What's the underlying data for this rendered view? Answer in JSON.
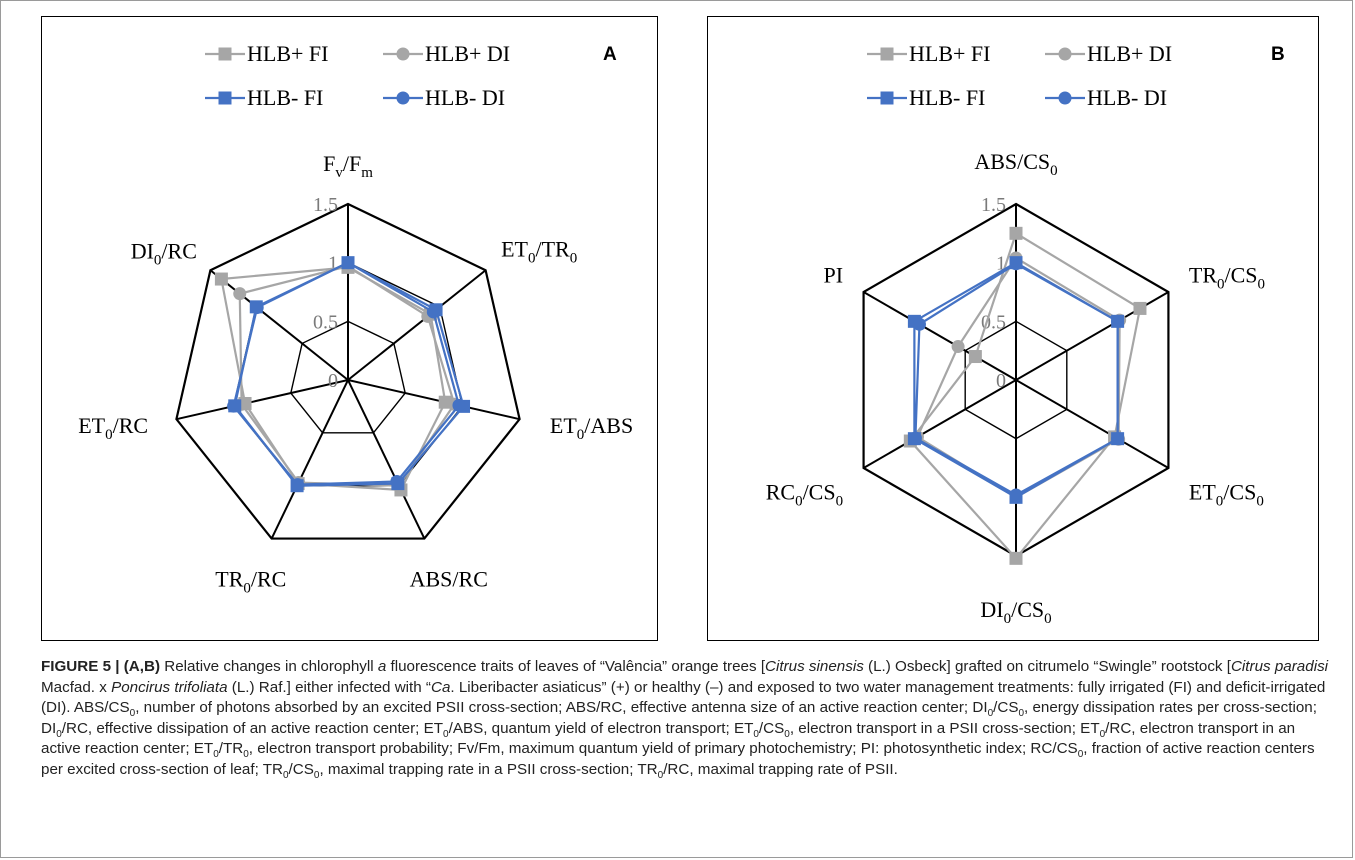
{
  "chart_data": [
    {
      "type": "radar",
      "panel_label": "A",
      "axes": [
        "Fv/Fm",
        "ET0/TR0",
        "ET0/ABS",
        "ABS/RC",
        "TR0/RC",
        "ET0/RC",
        "DI0/RC"
      ],
      "tick_labels": [
        "0",
        "0.5",
        "1",
        "1.5"
      ],
      "range": [
        0,
        1.5
      ],
      "legend": [
        "HLB+ FI",
        "HLB+ DI",
        "HLB- FI",
        "HLB- DI"
      ],
      "series": [
        {
          "name": "HLB+ FI",
          "color": "#a6a6a6",
          "marker": "square",
          "values": [
            0.96,
            0.9,
            0.85,
            1.04,
            0.98,
            0.9,
            1.38
          ]
        },
        {
          "name": "HLB+ DI",
          "color": "#a6a6a6",
          "marker": "circle",
          "values": [
            0.97,
            0.87,
            0.93,
            1.0,
            0.97,
            0.93,
            1.18
          ]
        },
        {
          "name": "HLB- FI",
          "color": "#4472c4",
          "marker": "square",
          "values": [
            1.0,
            0.96,
            1.01,
            0.98,
            1.0,
            0.99,
            1.0
          ]
        },
        {
          "name": "HLB- DI",
          "color": "#4472c4",
          "marker": "circle",
          "values": [
            1.0,
            0.93,
            0.97,
            0.96,
            0.99,
            1.0,
            0.99
          ]
        }
      ]
    },
    {
      "type": "radar",
      "panel_label": "B",
      "axes": [
        "ABS/CS0",
        "TR0/CS0",
        "ET0/CS0",
        "DI0/CS0",
        "RC0/CS0",
        "PI"
      ],
      "tick_labels": [
        "0",
        "0.5",
        "1",
        "1.5"
      ],
      "range": [
        0,
        1.5
      ],
      "legend": [
        "HLB+ FI",
        "HLB+ DI",
        "HLB- FI",
        "HLB- DI"
      ],
      "series": [
        {
          "name": "HLB+ FI",
          "color": "#a6a6a6",
          "marker": "square",
          "values": [
            1.25,
            1.22,
            0.97,
            1.52,
            1.04,
            0.4
          ]
        },
        {
          "name": "HLB+ DI",
          "color": "#a6a6a6",
          "marker": "circle",
          "values": [
            1.04,
            1.02,
            1.01,
            1.0,
            0.97,
            0.57
          ]
        },
        {
          "name": "HLB- FI",
          "color": "#4472c4",
          "marker": "square",
          "values": [
            1.0,
            1.0,
            1.0,
            1.0,
            1.0,
            1.0
          ]
        },
        {
          "name": "HLB- DI",
          "color": "#4472c4",
          "marker": "circle",
          "values": [
            0.99,
            1.0,
            1.0,
            0.98,
            0.99,
            0.95
          ]
        }
      ]
    }
  ],
  "caption": {
    "lead": "FIGURE 5 | (A,B)",
    "text": [
      {
        "t": " Relative changes in chlorophyll "
      },
      {
        "t": "a",
        "i": true
      },
      {
        "t": " fluorescence traits of leaves of “Valência” orange trees ["
      },
      {
        "t": "Citrus sinensis",
        "i": true
      },
      {
        "t": " (L.) Osbeck] grafted on citrumelo “Swingle” rootstock ["
      },
      {
        "t": "Citrus paradisi",
        "i": true
      },
      {
        "t": " Macfad. x "
      },
      {
        "t": "Poncirus trifoliata",
        "i": true
      },
      {
        "t": " (L.) Raf.] either infected with “"
      },
      {
        "t": "Ca",
        "i": true
      },
      {
        "t": ". Liberibacter asiaticus” (+) or healthy (–) and exposed to two water management treatments: fully irrigated (FI) and deficit-irrigated (DI). ABS/CS"
      },
      {
        "t": "0",
        "sub": true
      },
      {
        "t": ", number of photons absorbed by an excited PSII cross-section; ABS/RC, effective antenna size of an active reaction center; DI"
      },
      {
        "t": "0",
        "sub": true
      },
      {
        "t": "/CS"
      },
      {
        "t": "0",
        "sub": true
      },
      {
        "t": ", energy dissipation rates per cross-section; DI"
      },
      {
        "t": "0",
        "sub": true
      },
      {
        "t": "/RC, effective dissipation of an active reaction center; ET"
      },
      {
        "t": "0",
        "sub": true
      },
      {
        "t": "/ABS, quantum yield of electron transport; ET"
      },
      {
        "t": "0",
        "sub": true
      },
      {
        "t": "/CS"
      },
      {
        "t": "0",
        "sub": true
      },
      {
        "t": ", electron transport in a PSII cross-section; ET"
      },
      {
        "t": "0",
        "sub": true
      },
      {
        "t": "/RC, electron transport in an active reaction center; ET"
      },
      {
        "t": "0",
        "sub": true
      },
      {
        "t": "/TR"
      },
      {
        "t": "0",
        "sub": true
      },
      {
        "t": ", electron transport probability; Fv/Fm, maximum quantum yield of primary photochemistry; PI: photosynthetic index; RC/CS"
      },
      {
        "t": "0",
        "sub": true
      },
      {
        "t": ", fraction of active reaction centers per excited cross-section of leaf; TR"
      },
      {
        "t": "0",
        "sub": true
      },
      {
        "t": "/CS"
      },
      {
        "t": "0",
        "sub": true
      },
      {
        "t": ", maximal trapping rate in a PSII cross-section; TR"
      },
      {
        "t": "0",
        "sub": true
      },
      {
        "t": "/RC, maximal trapping rate of PSII."
      }
    ]
  }
}
